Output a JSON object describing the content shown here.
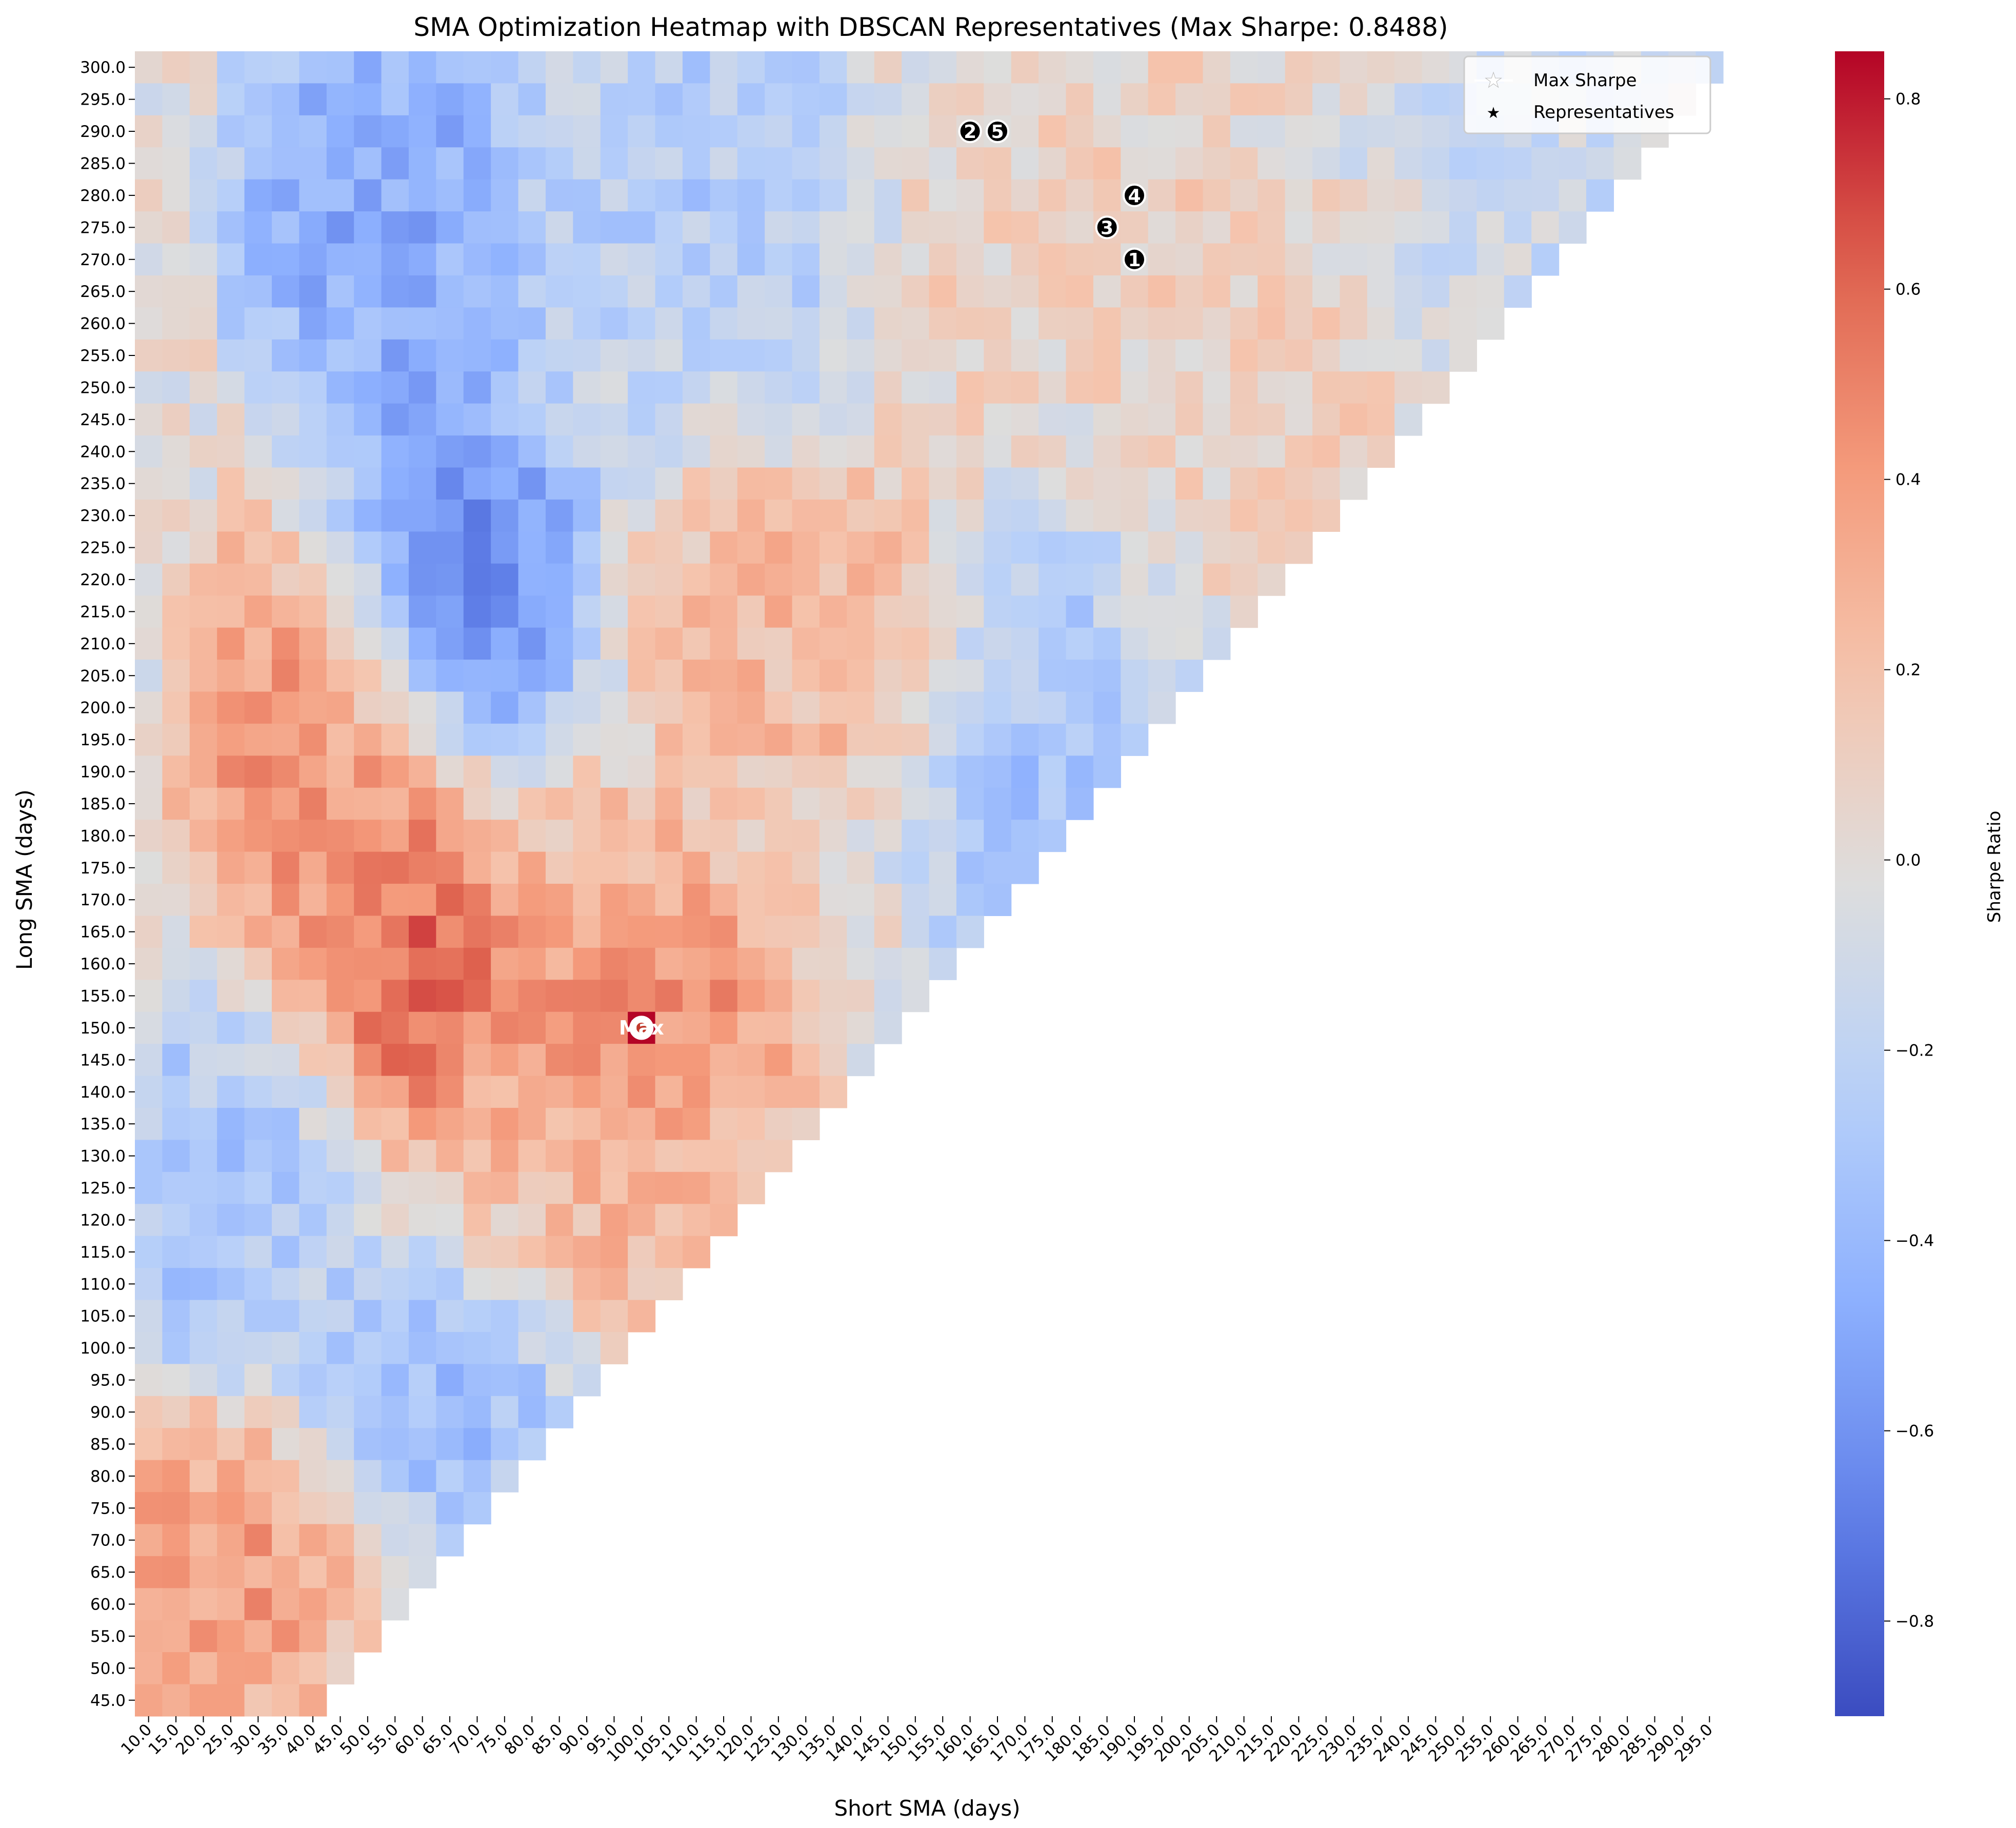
{
  "chart_data": {
    "type": "heatmap",
    "title": "SMA Optimization Heatmap with DBSCAN Representatives (Max Sharpe: 0.8488)",
    "xlabel": "Short SMA (days)",
    "ylabel": "Long SMA (days)",
    "colorbar_label": "Sharpe Ratio",
    "colormap": "coolwarm",
    "vmin": -0.9,
    "vmax": 0.85,
    "colorbar_ticks": [
      "−0.8",
      "−0.6",
      "−0.4",
      "−0.2",
      "0.0",
      "0.2",
      "0.4",
      "0.6",
      "0.8"
    ],
    "colorbar_tick_values": [
      -0.8,
      -0.6,
      -0.4,
      -0.2,
      0.0,
      0.2,
      0.4,
      0.6,
      0.8
    ],
    "x_ticks": [
      "10.0",
      "15.0",
      "20.0",
      "25.0",
      "30.0",
      "35.0",
      "40.0",
      "45.0",
      "50.0",
      "55.0",
      "60.0",
      "65.0",
      "70.0",
      "75.0",
      "80.0",
      "85.0",
      "90.0",
      "95.0",
      "100.0",
      "105.0",
      "110.0",
      "115.0",
      "120.0",
      "125.0",
      "130.0",
      "135.0",
      "140.0",
      "145.0",
      "150.0",
      "155.0",
      "160.0",
      "165.0",
      "170.0",
      "175.0",
      "180.0",
      "185.0",
      "190.0",
      "195.0",
      "200.0",
      "205.0",
      "210.0",
      "215.0",
      "220.0",
      "225.0",
      "230.0",
      "235.0",
      "240.0",
      "245.0",
      "250.0",
      "255.0",
      "260.0",
      "265.0",
      "270.0",
      "275.0",
      "280.0",
      "285.0",
      "290.0",
      "295.0"
    ],
    "y_ticks": [
      "300.0",
      "295.0",
      "290.0",
      "285.0",
      "280.0",
      "275.0",
      "270.0",
      "265.0",
      "260.0",
      "255.0",
      "250.0",
      "245.0",
      "240.0",
      "235.0",
      "230.0",
      "225.0",
      "220.0",
      "215.0",
      "210.0",
      "205.0",
      "200.0",
      "195.0",
      "190.0",
      "185.0",
      "180.0",
      "175.0",
      "170.0",
      "165.0",
      "160.0",
      "155.0",
      "150.0",
      "145.0",
      "140.0",
      "135.0",
      "130.0",
      "125.0",
      "120.0",
      "115.0",
      "110.0",
      "105.0",
      "100.0",
      "95.0",
      "90.0",
      "85.0",
      "80.0",
      "75.0",
      "70.0",
      "65.0",
      "60.0",
      "55.0",
      "50.0",
      "45.0"
    ],
    "max_sharpe": {
      "short": 100,
      "long": 150,
      "value": 0.8488,
      "label": "Max"
    },
    "representatives": [
      {
        "label": "1",
        "short": 190,
        "long": 270
      },
      {
        "label": "2",
        "short": 160,
        "long": 290
      },
      {
        "label": "3",
        "short": 185,
        "long": 275
      },
      {
        "label": "4",
        "short": 190,
        "long": 280
      },
      {
        "label": "5",
        "short": 165,
        "long": 290
      }
    ],
    "legend": {
      "position": "top-right",
      "entries": [
        "Max Sharpe",
        "Representatives"
      ]
    },
    "value_regions": [
      {
        "long": [
          255,
          300
        ],
        "short": [
          40,
          65
        ],
        "value": -0.55
      },
      {
        "long": [
          205,
          235
        ],
        "short": [
          55,
          75
        ],
        "value": -0.75
      },
      {
        "long": [
          150,
          170
        ],
        "short": [
          55,
          65
        ],
        "value": 0.7
      },
      {
        "long": [
          145,
          160
        ],
        "short": [
          90,
          110
        ],
        "value": 0.65
      },
      {
        "long": [
          170,
          215
        ],
        "short": [
          30,
          55
        ],
        "value": 0.5
      },
      {
        "long": [
          200,
          225
        ],
        "short": [
          115,
          150
        ],
        "value": 0.28
      },
      {
        "long": [
          165,
          230
        ],
        "short": [
          165,
          195
        ],
        "value": -0.4
      },
      {
        "long": [
          235,
          300
        ],
        "short": [
          155,
          200
        ],
        "value": 0.12
      },
      {
        "long": [
          200,
          265
        ],
        "short": [
          195,
          240
        ],
        "value": 0.15
      },
      {
        "long": [
          55,
          80
        ],
        "short": [
          10,
          35
        ],
        "value": 0.45
      },
      {
        "long": [
          105,
          140
        ],
        "short": [
          10,
          30
        ],
        "value": -0.35
      },
      {
        "long": [
          85,
          100
        ],
        "short": [
          50,
          75
        ],
        "value": -0.45
      },
      {
        "long": [
          110,
          170
        ],
        "short": [
          80,
          115
        ],
        "value": 0.3
      },
      {
        "long": [
          260,
          300
        ],
        "short": [
          95,
          130
        ],
        "value": -0.3
      },
      {
        "long": [
          240,
          300
        ],
        "short": [
          240,
          295
        ],
        "value": -0.15
      }
    ]
  }
}
